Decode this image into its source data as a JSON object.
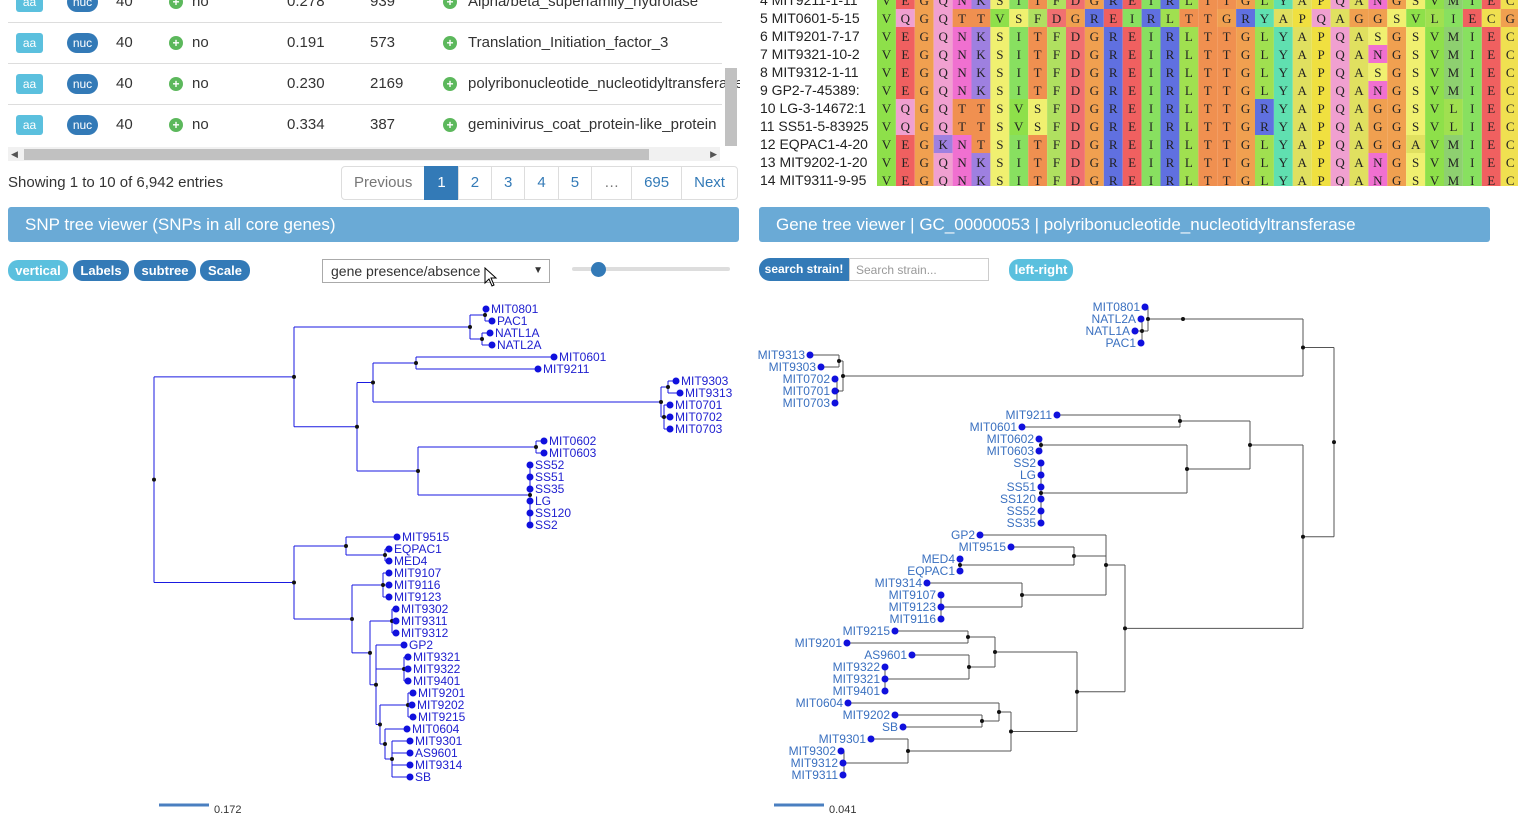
{
  "table": {
    "rows": [
      {
        "aa": "aa",
        "nuc": "nuc",
        "count": "40",
        "paralog": "no",
        "score": "0.278",
        "length": "939",
        "annotation": "Alpha/beta_superfamily_hydrolase"
      },
      {
        "aa": "aa",
        "nuc": "nuc",
        "count": "40",
        "paralog": "no",
        "score": "0.191",
        "length": "573",
        "annotation": "Translation_Initiation_factor_3"
      },
      {
        "aa": "aa",
        "nuc": "nuc",
        "count": "40",
        "paralog": "no",
        "score": "0.230",
        "length": "2169",
        "annotation": "polyribonucleotide_nucleotidyltransferase"
      },
      {
        "aa": "aa",
        "nuc": "nuc",
        "count": "40",
        "paralog": "no",
        "score": "0.334",
        "length": "387",
        "annotation": "geminivirus_coat_protein-like_protein"
      }
    ],
    "showing": "Showing 1 to 10 of 6,942 entries",
    "pagination": {
      "previous": "Previous",
      "pages": [
        "1",
        "2",
        "3",
        "4",
        "5",
        "…",
        "695"
      ],
      "next": "Next",
      "active": "1"
    }
  },
  "msa": {
    "rows": [
      {
        "label": "4 MIT9211-1-11",
        "seq": "VEGQNKSITFDGREIRLTTGLYAPQANGSVMIECGDTSLLVT"
      },
      {
        "label": "5 MIT0601-5-15",
        "seq": "VQGQTTVSFDGREIRLTTGRYAPQAGGSVLIECGDTAVLVT"
      },
      {
        "label": "6 MIT9201-7-17",
        "seq": "VEGQNKSITFDGREIRLTTGLYAPQASGSVMIECGDTSLLVT"
      },
      {
        "label": "7 MIT9321-10-2",
        "seq": "VEGQNKSITFDGREIRLTTGLYAPQANGSVMIECGDTSLLVT"
      },
      {
        "label": "8 MIT9312-1-11",
        "seq": "VEGQNKSITFDGREIRLTTGLYAPQASGSVMIECGDTSLLVT"
      },
      {
        "label": "9 GP2-7-45389:",
        "seq": "VEGQNKSITFDGREIRLTTGLYAPQANGSVMIECGDTSLLVT"
      },
      {
        "label": "10 LG-3-14672:1",
        "seq": "VQGQTTSVSFDGREIRLTTGRYAPQAGGSVLIECGDTAVLVT"
      },
      {
        "label": "11 SS51-5-83925",
        "seq": "VQGQTTSVSFDGREIRLTTGRYAPQAGGSVLIECGDTAVLVT"
      },
      {
        "label": "12 EQPAC1-4-20",
        "seq": "VEGKNTSITFDGREIRLTTGLYAPQAGGAVMIECGDTSLLVT"
      },
      {
        "label": "13 MIT9202-1-20",
        "seq": "VEGQNKSITFDGREIRLTTGLYAPQANGSVMIECGDTSLLVT"
      },
      {
        "label": "14 MIT9311-9-95",
        "seq": "VEGQNKSITFDGREIRLTTGLYAPQANGSVMIECGDTSLLVT"
      }
    ],
    "aa_colors": {
      "V": "#8ee04a",
      "E": "#f06060",
      "G": "#f0a050",
      "Q": "#f0a0d0",
      "N": "#f070d0",
      "K": "#9e80e0",
      "S": "#f0f070",
      "I": "#88e060",
      "T": "#f09050",
      "F": "#b0e060",
      "D": "#f07070",
      "R": "#6070e0",
      "L": "#a0e050",
      "Y": "#60e0b0",
      "A": "#e0e060",
      "P": "#f0e040",
      "M": "#8ed070",
      "C": "#f0e050"
    }
  },
  "snp_panel": {
    "title": "SNP tree viewer (SNPs in all core genes)",
    "buttons": {
      "vertical": "vertical",
      "labels": "Labels",
      "subtree": "subtree",
      "scale": "Scale"
    },
    "select_value": "gene presence/absence",
    "slider_value": 0.15,
    "scale_value": "0.172",
    "leaves": [
      "MIT0801",
      "PAC1",
      "NATL1A",
      "NATL2A",
      "MIT0601",
      "MIT9211",
      "MIT9303",
      "MIT9313",
      "MIT0701",
      "MIT0702",
      "MIT0703",
      "MIT0602",
      "MIT0603",
      "SS52",
      "SS51",
      "SS35",
      "LG",
      "SS120",
      "SS2",
      "MIT9515",
      "EQPAC1",
      "MED4",
      "MIT9107",
      "MIT9116",
      "MIT9123",
      "MIT9302",
      "MIT9311",
      "MIT9312",
      "GP2",
      "MIT9321",
      "MIT9322",
      "MIT9401",
      "MIT9201",
      "MIT9202",
      "MIT9215",
      "MIT0604",
      "MIT9301",
      "AS9601",
      "MIT9314",
      "SB"
    ]
  },
  "gene_panel": {
    "title": "Gene tree viewer | GC_00000053 | polyribonucleotide_nucleotidyltransferase",
    "search_button": "search strain!",
    "search_placeholder": "Search strain...",
    "leftright_button": "left-right",
    "scale_value": "0.041",
    "leaves": [
      "MIT0801",
      "NATL2A",
      "NATL1A",
      "PAC1",
      "MIT9313",
      "MIT9303",
      "MIT0702",
      "MIT0701",
      "MIT0703",
      "MIT9211",
      "MIT0601",
      "MIT0602",
      "MIT0603",
      "SS2",
      "LG",
      "SS51",
      "SS120",
      "SS52",
      "SS35",
      "GP2",
      "MIT9515",
      "MED4",
      "EQPAC1",
      "MIT9314",
      "MIT9107",
      "MIT9123",
      "MIT9116",
      "MIT9215",
      "MIT9201",
      "AS9601",
      "MIT9322",
      "MIT9321",
      "MIT9401",
      "MIT0604",
      "MIT9202",
      "SB",
      "MIT9301",
      "MIT9302",
      "MIT9312",
      "MIT9311"
    ]
  },
  "colors": {
    "tree1_line": "#1a1ae0",
    "tree2_line": "#555555",
    "leaf_dot": "#1010dd",
    "leaf_label_tree1": "#2020d0",
    "leaf_label_tree2": "#3a70c0",
    "header_bg": "#6aaad6",
    "primary": "#337ab7",
    "info": "#5bc0de",
    "success": "#5cb85c"
  }
}
